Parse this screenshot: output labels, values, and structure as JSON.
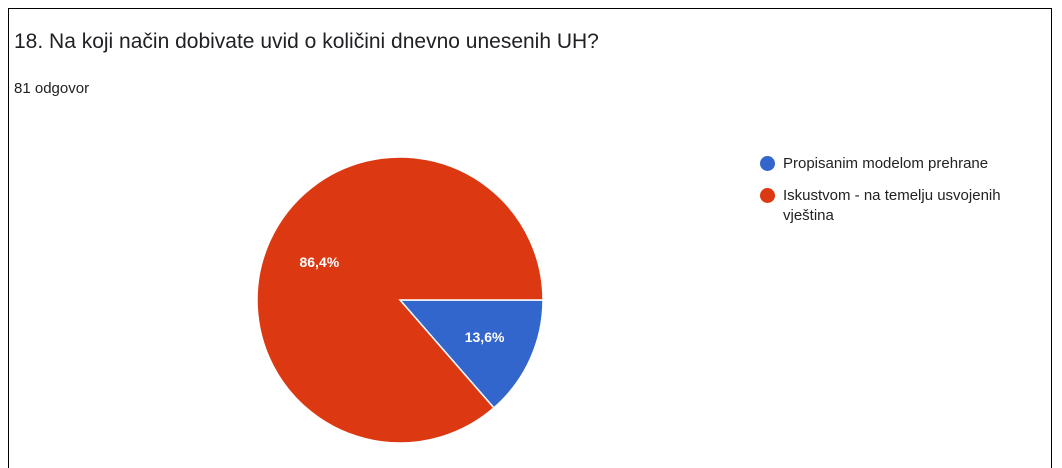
{
  "chart_data": {
    "type": "pie",
    "title": "18. Na koji način dobivate uvid o količini dnevno unesenih UH?",
    "subtitle": "81 odgovor",
    "categories": [
      "Propisanim modelom prehrane",
      "Iskustvom - na temelju usvojenih vještina"
    ],
    "values": [
      13.6,
      86.4
    ],
    "value_labels": [
      "13,6%",
      "86,4%"
    ],
    "colors": [
      "#3366cc",
      "#dc3912"
    ],
    "legend": "right"
  }
}
